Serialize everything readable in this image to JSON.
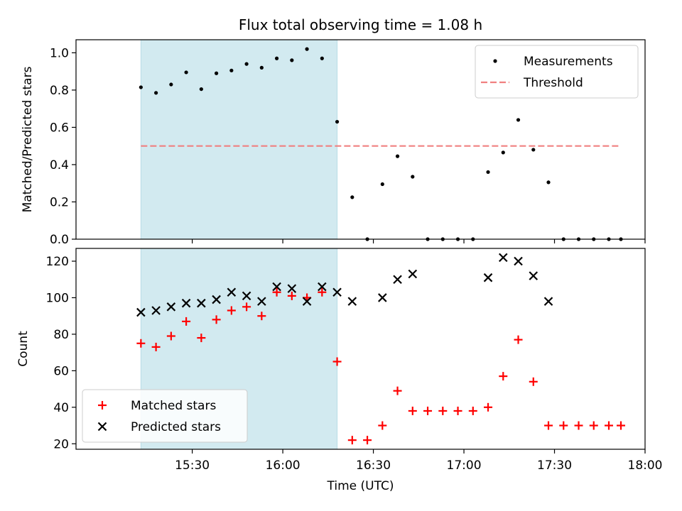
{
  "chart_data": [
    {
      "type": "scatter",
      "title": "Flux total observing time = 1.08 h",
      "xlabel": "",
      "ylabel": "Matched/Predicted stars",
      "ylim": [
        0,
        1.07
      ],
      "yticks": [
        0.0,
        0.2,
        0.4,
        0.6,
        0.8,
        1.0
      ],
      "ytick_labels": [
        "0.0",
        "0.2",
        "0.4",
        "0.6",
        "0.8",
        "1.0"
      ],
      "x_units": "minutes since 15:00 UTC",
      "xlim": [
        -8.5,
        180
      ],
      "highlight_span": [
        13,
        78
      ],
      "highlight_color": "#d2eaf0",
      "legend": {
        "position": "upper-right",
        "entries": [
          "Measurements",
          "Threshold"
        ]
      },
      "series": [
        {
          "name": "Measurements",
          "marker": "dot",
          "color": "#000000",
          "x": [
            13,
            18,
            23,
            28,
            33,
            38,
            43,
            48,
            53,
            58,
            63,
            68,
            73,
            78,
            83,
            88,
            93,
            98,
            103,
            108,
            113,
            118,
            123,
            128,
            133,
            138,
            143,
            148,
            153,
            158,
            163,
            168,
            172
          ],
          "y": [
            0.815,
            0.785,
            0.83,
            0.895,
            0.805,
            0.89,
            0.905,
            0.94,
            0.92,
            0.97,
            0.96,
            1.02,
            0.97,
            0.63,
            0.225,
            0.0,
            0.295,
            0.445,
            0.335,
            0.0,
            0.0,
            0.0,
            0.0,
            0.36,
            0.465,
            0.64,
            0.48,
            0.305,
            0.0,
            0.0,
            0.0,
            0.0,
            0.0
          ]
        },
        {
          "name": "Threshold",
          "marker": "dashed-line",
          "color": "#f08080",
          "x": [
            13,
            172
          ],
          "y": [
            0.5,
            0.5
          ]
        }
      ]
    },
    {
      "type": "scatter",
      "xlabel": "Time (UTC)",
      "ylabel": "Count",
      "ylim": [
        17,
        127
      ],
      "yticks": [
        20,
        40,
        60,
        80,
        100,
        120
      ],
      "ytick_labels": [
        "20",
        "40",
        "60",
        "80",
        "100",
        "120"
      ],
      "x_units": "minutes since 15:00 UTC",
      "xlim": [
        -8.5,
        180
      ],
      "xticks": [
        30,
        60,
        90,
        120,
        150,
        180
      ],
      "xtick_labels": [
        "15:30",
        "16:00",
        "16:30",
        "17:00",
        "17:30",
        "18:00"
      ],
      "highlight_span": [
        13,
        78
      ],
      "highlight_color": "#d2eaf0",
      "legend": {
        "position": "lower-left",
        "entries": [
          "Matched stars",
          "Predicted stars"
        ]
      },
      "series": [
        {
          "name": "Matched stars",
          "marker": "plus",
          "color": "#ff0000",
          "x": [
            13,
            18,
            23,
            28,
            33,
            38,
            43,
            48,
            53,
            58,
            63,
            68,
            73,
            78,
            83,
            88,
            93,
            98,
            103,
            108,
            113,
            118,
            123,
            128,
            133,
            138,
            143,
            148,
            153,
            158,
            163,
            168,
            172
          ],
          "y": [
            75,
            73,
            79,
            87,
            78,
            88,
            93,
            95,
            90,
            103,
            101,
            100,
            103,
            65,
            22,
            22,
            30,
            49,
            38,
            38,
            38,
            38,
            38,
            40,
            57,
            77,
            54,
            30,
            30,
            30,
            30,
            30,
            30
          ]
        },
        {
          "name": "Predicted stars",
          "marker": "x",
          "color": "#000000",
          "x": [
            13,
            18,
            23,
            28,
            33,
            38,
            43,
            48,
            53,
            58,
            63,
            68,
            73,
            78,
            83,
            93,
            98,
            103,
            128,
            133,
            138,
            143,
            148
          ],
          "y": [
            92,
            93,
            95,
            97,
            97,
            99,
            103,
            101,
            98,
            106,
            105,
            98,
            106,
            103,
            98,
            100,
            110,
            113,
            111,
            122,
            120,
            112,
            98
          ]
        }
      ]
    }
  ]
}
